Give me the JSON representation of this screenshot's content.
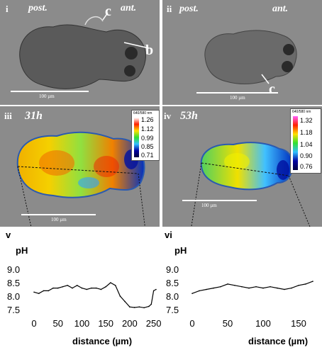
{
  "panels": {
    "i": {
      "label": "i",
      "post": "post.",
      "ant": "ant.",
      "scale": "100 µm",
      "callout_c": "c",
      "callout_b": "b"
    },
    "ii": {
      "label": "ii",
      "post": "post.",
      "ant": "ant.",
      "scale": "100 µm",
      "callout_c": "c"
    },
    "iii": {
      "label": "iii",
      "time": "31h",
      "scale": "100 µm",
      "colorbar": {
        "title": "640/580 nm",
        "ticks": [
          "1.26",
          "1.12",
          "0.99",
          "0.85",
          "0.71"
        ]
      }
    },
    "iv": {
      "label": "iv",
      "time": "53h",
      "scale": "100 µm",
      "colorbar": {
        "title": "640/580 nm",
        "ticks": [
          "1.32",
          "1.18",
          "1.04",
          "0.90",
          "0.76"
        ]
      }
    }
  },
  "plots": {
    "v": {
      "label": "v",
      "ylabel": "pH",
      "xlabel": "distance (µm)"
    },
    "vi": {
      "label": "vi",
      "ylabel": "pH",
      "xlabel": "distance (µm)"
    }
  },
  "chart_data": [
    {
      "type": "line",
      "panel": "v",
      "ylabel": "pH",
      "xlabel": "distance (µm)",
      "xlim": [
        0,
        255
      ],
      "ylim": [
        7.5,
        9.0
      ],
      "xticks": [
        "0",
        "50",
        "100",
        "150",
        "200",
        "250"
      ],
      "yticks": [
        "9.0",
        "8.5",
        "8.0",
        "7.5"
      ],
      "x": [
        0,
        10,
        20,
        30,
        40,
        50,
        60,
        70,
        80,
        90,
        100,
        110,
        120,
        130,
        140,
        150,
        160,
        170,
        180,
        190,
        200,
        210,
        220,
        230,
        240,
        245,
        250,
        255
      ],
      "y": [
        8.15,
        8.1,
        8.2,
        8.2,
        8.3,
        8.3,
        8.35,
        8.4,
        8.3,
        8.4,
        8.3,
        8.25,
        8.3,
        8.3,
        8.25,
        8.35,
        8.5,
        8.4,
        8.0,
        7.8,
        7.6,
        7.58,
        7.6,
        7.57,
        7.62,
        7.7,
        8.2,
        8.25
      ]
    },
    {
      "type": "line",
      "panel": "vi",
      "ylabel": "pH",
      "xlabel": "distance (µm)",
      "xlim": [
        0,
        170
      ],
      "ylim": [
        7.5,
        9.0
      ],
      "xticks": [
        "0",
        "50",
        "100",
        "150"
      ],
      "yticks": [
        "9.0",
        "8.5",
        "8.0",
        "7.5"
      ],
      "x": [
        0,
        10,
        20,
        30,
        40,
        50,
        60,
        70,
        80,
        90,
        100,
        110,
        120,
        130,
        140,
        150,
        160,
        170
      ],
      "y": [
        8.1,
        8.2,
        8.25,
        8.3,
        8.35,
        8.45,
        8.4,
        8.35,
        8.3,
        8.35,
        8.3,
        8.35,
        8.3,
        8.25,
        8.3,
        8.4,
        8.45,
        8.55
      ]
    }
  ]
}
